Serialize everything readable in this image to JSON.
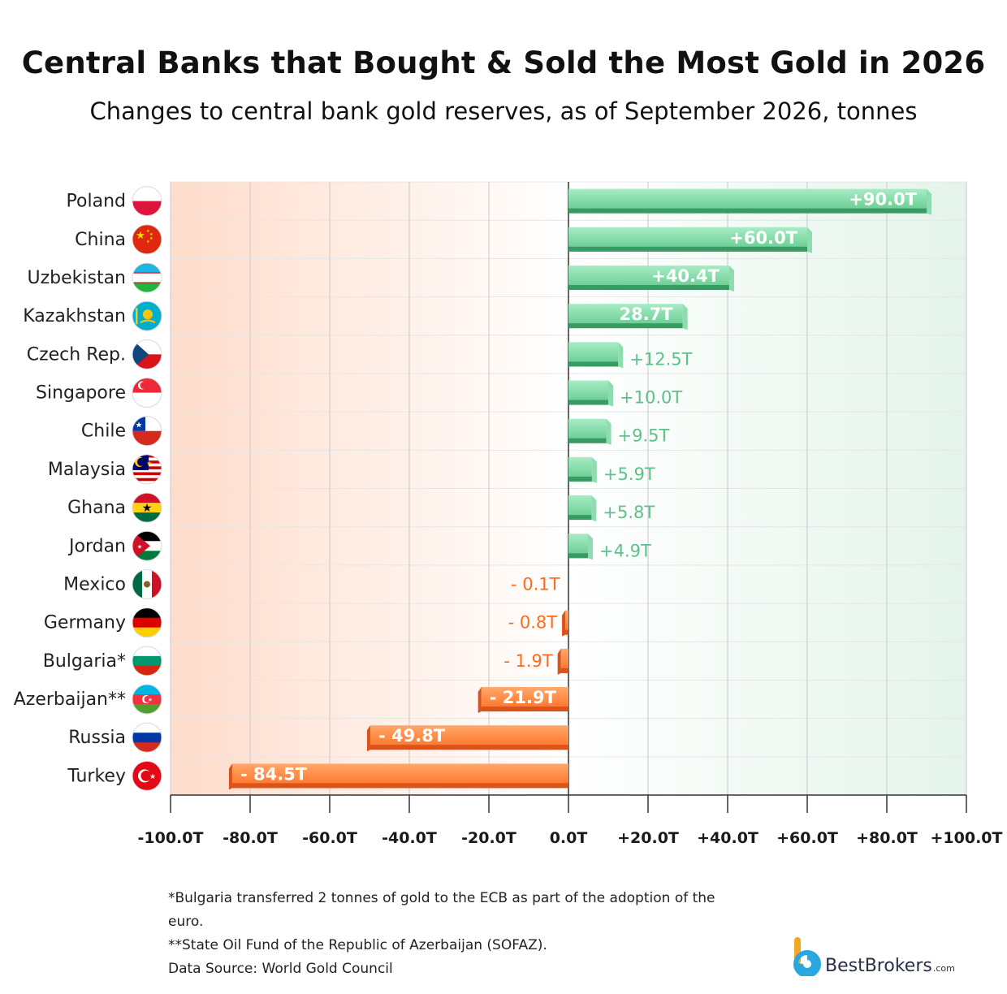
{
  "header": {
    "title": "Central Banks that Bought & Sold the Most Gold in 2026",
    "subtitle": "Changes to central bank gold reserves, as of September 2026, tonnes"
  },
  "chart_data": {
    "type": "bar",
    "orientation": "horizontal",
    "title": "Central Banks that Bought & Sold the Most Gold in 2026",
    "subtitle": "Changes to central bank gold reserves, as of September 2026, tonnes",
    "xlim": [
      -100,
      100
    ],
    "xticks": [
      -100,
      -80,
      -60,
      -40,
      -20,
      0,
      20,
      40,
      60,
      80,
      100
    ],
    "xtick_labels": [
      "-100.0T",
      "-80.0T",
      "-60.0T",
      "-40.0T",
      "-20.0T",
      "0.0T",
      "+20.0T",
      "+40.0T",
      "+60.0T",
      "+80.0T",
      "+100.0T"
    ],
    "grid": true,
    "categories": [
      "Poland",
      "China",
      "Uzbekistan",
      "Kazakhstan",
      "Czech Rep.",
      "Singapore",
      "Chile",
      "Malaysia",
      "Ghana",
      "Jordan",
      "Mexico",
      "Germany",
      "Bulgaria*",
      "Azerbaijan**",
      "Russia",
      "Turkey"
    ],
    "values": [
      90.0,
      60.0,
      40.4,
      28.7,
      12.5,
      10.0,
      9.5,
      5.9,
      5.8,
      4.9,
      -0.1,
      -0.8,
      -1.9,
      -21.9,
      -49.8,
      -84.5
    ],
    "data_labels": [
      "+90.0T",
      "+60.0T",
      "+40.4T",
      "28.7T",
      "+12.5T",
      "+10.0T",
      "+9.5T",
      "+5.9T",
      "+5.8T",
      "+4.9T",
      "- 0.1T",
      "- 0.8T",
      "- 1.9T",
      "- 21.9T",
      "- 49.8T",
      "- 84.5T"
    ],
    "flag_icons": [
      "poland-flag-icon",
      "china-flag-icon",
      "uzbekistan-flag-icon",
      "kazakhstan-flag-icon",
      "czech-flag-icon",
      "singapore-flag-icon",
      "chile-flag-icon",
      "malaysia-flag-icon",
      "ghana-flag-icon",
      "jordan-flag-icon",
      "mexico-flag-icon",
      "germany-flag-icon",
      "bulgaria-flag-icon",
      "azerbaijan-flag-icon",
      "russia-flag-icon",
      "turkey-flag-icon"
    ],
    "colors": {
      "positive": "#6fcf97",
      "positive_dark": "#3a9a63",
      "positive_label": "#5cc28a",
      "negative": "#ff7a33",
      "negative_dark": "#d9531a",
      "negative_label": "#ff6a1a",
      "positive_bg": "#e6f5ec",
      "negative_bg": "#ffe3d6"
    }
  },
  "footnotes": {
    "bulgaria": "*Bulgaria transferred 2 tonnes of gold to the ECB as part of the adoption of the euro.",
    "azerbaijan": "**State Oil Fund of the Republic of Azerbaijan (SOFAZ).",
    "source": "Data Source: World Gold Council"
  },
  "brand": {
    "name": "BestBrokers",
    "suffix": ".com",
    "logo_icon": "bestbrokers-logo-icon"
  }
}
